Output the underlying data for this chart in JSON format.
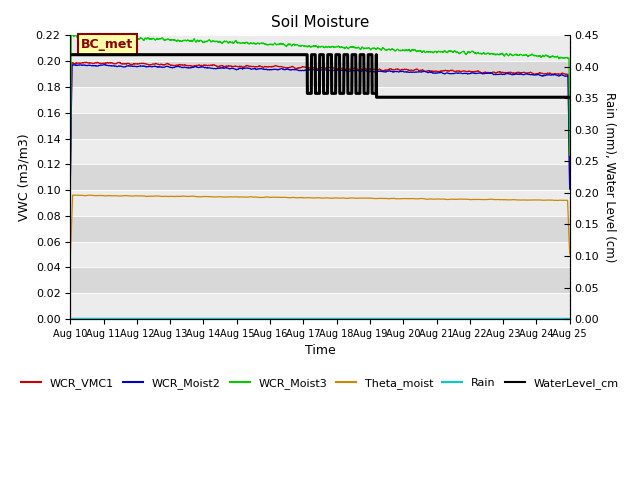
{
  "title": "Soil Moisture",
  "xlabel": "Time",
  "ylabel_left": "VWC (m3/m3)",
  "ylabel_right": "Rain (mm), Water Level (cm)",
  "ylim_left": [
    0.0,
    0.22
  ],
  "ylim_right": [
    0.0,
    0.45
  ],
  "yticks_left": [
    0.0,
    0.02,
    0.04,
    0.06,
    0.08,
    0.1,
    0.12,
    0.14,
    0.16,
    0.18,
    0.2,
    0.22
  ],
  "yticks_right": [
    0.0,
    0.05,
    0.1,
    0.15,
    0.2,
    0.25,
    0.3,
    0.35,
    0.4,
    0.45
  ],
  "xtick_labels": [
    "Aug 10",
    "Aug 11",
    "Aug 12",
    "Aug 13",
    "Aug 14",
    "Aug 15",
    "Aug 16",
    "Aug 17",
    "Aug 18",
    "Aug 19",
    "Aug 20",
    "Aug 21",
    "Aug 22",
    "Aug 23",
    "Aug 24",
    "Aug 25"
  ],
  "annotation_text": "BC_met",
  "bg_color_light": "#ececec",
  "bg_color_dark": "#d8d8d8",
  "legend_entries": [
    {
      "label": "WCR_VMC1",
      "color": "#cc0000"
    },
    {
      "label": "WCR_Moist2",
      "color": "#0000cc"
    },
    {
      "label": "WCR_Moist3",
      "color": "#00cc00"
    },
    {
      "label": "Theta_moist",
      "color": "#cc8800"
    },
    {
      "label": "Rain",
      "color": "#00cccc"
    },
    {
      "label": "WaterLevel_cm",
      "color": "#000000"
    }
  ]
}
